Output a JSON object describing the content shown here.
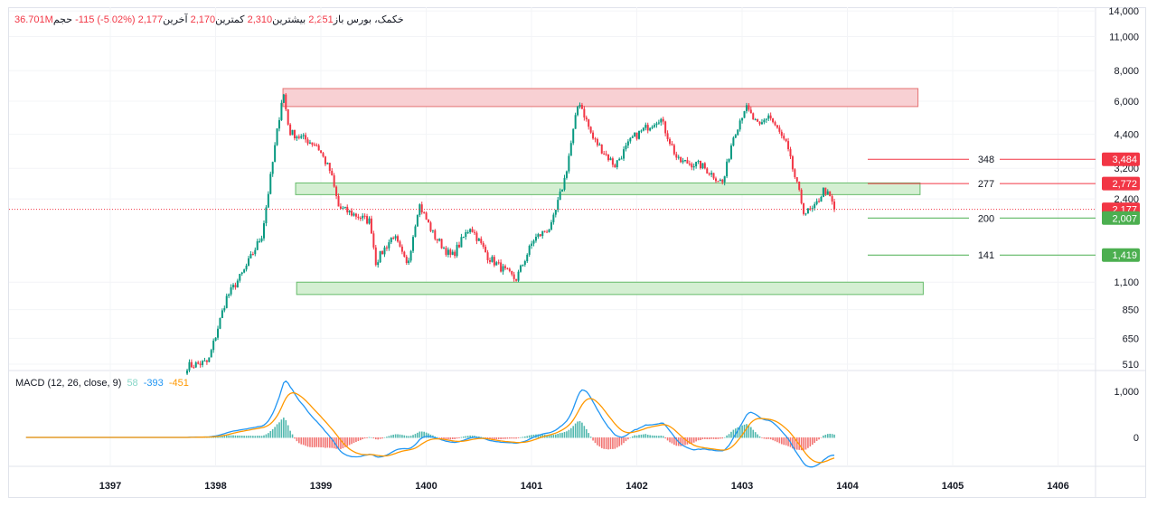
{
  "legend": {
    "symbol": "خکمک، بورس",
    "open_label": "باز",
    "open": "2,251",
    "high_label": "بیشترین",
    "high": "2,310",
    "low_label": "کمترین",
    "low": "2,170",
    "close_label": "آخرین",
    "close": "2,177",
    "change": "-115 (-5.02%)",
    "volume_label": "حجم",
    "volume": "36.701M"
  },
  "macd": {
    "label": "MACD (12, 26, close, 9)",
    "histogram": "58",
    "macd": "-393",
    "signal": "-451",
    "colors": {
      "histogram": "#89d6c8",
      "macd": "#2196f3",
      "signal": "#ff9800"
    }
  },
  "colors": {
    "up": "#089981",
    "down": "#f23645",
    "resistance_zone": "#f8d0d3",
    "support_zone": "#d4efd2"
  },
  "price_axis": {
    "scale": "log",
    "ticks": [
      "14,000",
      "11,000",
      "8,000",
      "6,000",
      "4,400",
      "3,200",
      "2,400",
      "1,100",
      "850",
      "650",
      "510"
    ],
    "tick_values": [
      14000,
      11000,
      8000,
      6000,
      4400,
      3200,
      2400,
      1100,
      850,
      650,
      510
    ]
  },
  "macd_axis": {
    "ticks": [
      "1,000",
      "0"
    ],
    "tick_values": [
      1000,
      0
    ]
  },
  "time_axis": {
    "ticks": [
      "1397",
      "1398",
      "1399",
      "1400",
      "1401",
      "1402",
      "1403",
      "1404",
      "1405",
      "1406"
    ]
  },
  "price_badges": [
    {
      "label": "3,484",
      "value": 3484,
      "color": "#f23645",
      "line_label": "348"
    },
    {
      "label": "2,772",
      "value": 2772,
      "color": "#f23645",
      "line_label": "277"
    },
    {
      "label": "2,177",
      "value": 2177,
      "color": "#f23645",
      "line_label": ""
    },
    {
      "label": "2,007",
      "value": 2007,
      "color": "#4caf50",
      "line_label": "200"
    },
    {
      "label": "1,419",
      "value": 1419,
      "color": "#4caf50",
      "line_label": "141"
    }
  ],
  "zones": [
    {
      "type": "resistance",
      "from": 1398.64,
      "to": 1404.67,
      "low": 5710,
      "high": 6760
    },
    {
      "type": "support",
      "from": 1398.76,
      "to": 1404.69,
      "low": 2500,
      "high": 2790
    },
    {
      "type": "support",
      "from": 1398.77,
      "to": 1404.72,
      "low": 980,
      "high": 1100
    }
  ],
  "chart_data": {
    "type": "candlestick",
    "price_anchors": [
      [
        1397.73,
        501
      ],
      [
        1397.93,
        520
      ],
      [
        1398.1,
        946
      ],
      [
        1398.27,
        1221
      ],
      [
        1398.44,
        1713
      ],
      [
        1398.53,
        3100
      ],
      [
        1398.64,
        6640
      ],
      [
        1398.7,
        4500
      ],
      [
        1398.96,
        3990
      ],
      [
        1399.09,
        3100
      ],
      [
        1399.17,
        2210
      ],
      [
        1399.47,
        1940
      ],
      [
        1399.52,
        1327
      ],
      [
        1399.69,
        1713
      ],
      [
        1399.82,
        1270
      ],
      [
        1399.93,
        2300
      ],
      [
        1400.07,
        1713
      ],
      [
        1400.24,
        1390
      ],
      [
        1400.42,
        1860
      ],
      [
        1400.59,
        1390
      ],
      [
        1400.85,
        1125
      ],
      [
        1401.02,
        1640
      ],
      [
        1401.19,
        1860
      ],
      [
        1401.32,
        2960
      ],
      [
        1401.45,
        6100
      ],
      [
        1401.58,
        4250
      ],
      [
        1401.79,
        3290
      ],
      [
        1401.96,
        4250
      ],
      [
        1402.22,
        5160
      ],
      [
        1402.39,
        3430
      ],
      [
        1402.61,
        3290
      ],
      [
        1402.82,
        2780
      ],
      [
        1402.91,
        4250
      ],
      [
        1403.03,
        5700
      ],
      [
        1403.16,
        4680
      ],
      [
        1403.25,
        5300
      ],
      [
        1403.42,
        3990
      ],
      [
        1403.59,
        2110
      ],
      [
        1403.68,
        2170
      ],
      [
        1403.78,
        2650
      ],
      [
        1403.89,
        2177
      ]
    ],
    "last_price": 2177
  }
}
